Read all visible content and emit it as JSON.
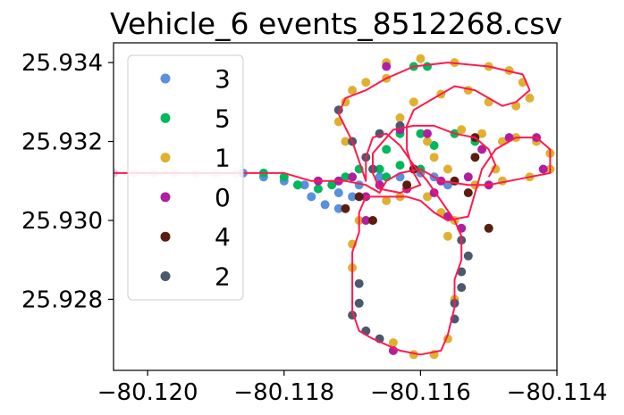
{
  "chart_data": {
    "type": "scatter",
    "title": "Vehicle_6 events_8512268.csv",
    "xlabel": "",
    "ylabel": "",
    "xlim": [
      -80.1205,
      -80.114
    ],
    "ylim": [
      25.9262,
      25.9345
    ],
    "x_ticks": [
      -80.12,
      -80.118,
      -80.116,
      -80.114
    ],
    "x_tick_labels": [
      "−80.120",
      "−80.118",
      "−80.116",
      "−80.114"
    ],
    "y_ticks": [
      25.928,
      25.93,
      25.932,
      25.934
    ],
    "y_tick_labels": [
      "25.928",
      "25.930",
      "25.932",
      "25.934"
    ],
    "grid": false,
    "legend_position": "upper-left",
    "route_line": {
      "color": "#ff1a4d",
      "points": [
        [
          -80.1205,
          25.9312
        ],
        [
          -80.119,
          25.9312
        ],
        [
          -80.118,
          25.9312
        ],
        [
          -80.1176,
          25.931
        ],
        [
          -80.1171,
          25.931
        ],
        [
          -80.1168,
          25.9309
        ],
        [
          -80.1166,
          25.9307
        ],
        [
          -80.1165,
          25.931
        ],
        [
          -80.1163,
          25.9312
        ],
        [
          -80.116,
          25.9313
        ],
        [
          -80.1157,
          25.931
        ],
        [
          -80.1153,
          25.9309
        ],
        [
          -80.115,
          25.9309
        ],
        [
          -80.1147,
          25.931
        ],
        [
          -80.1144,
          25.9311
        ],
        [
          -80.1141,
          25.9312
        ],
        [
          -80.1141,
          25.9318
        ],
        [
          -80.1143,
          25.9321
        ],
        [
          -80.1146,
          25.9321
        ],
        [
          -80.1149,
          25.9318
        ],
        [
          -80.1151,
          25.9313
        ],
        [
          -80.1153,
          25.9301
        ],
        [
          -80.1156,
          25.93
        ],
        [
          -80.1158,
          25.9302
        ],
        [
          -80.116,
          25.9305
        ],
        [
          -80.1162,
          25.9306
        ],
        [
          -80.1165,
          25.9306
        ],
        [
          -80.1168,
          25.9306
        ],
        [
          -80.1169,
          25.9302
        ],
        [
          -80.1169,
          25.9297
        ],
        [
          -80.117,
          25.9292
        ],
        [
          -80.117,
          25.9285
        ],
        [
          -80.117,
          25.9277
        ],
        [
          -80.1169,
          25.9272
        ],
        [
          -80.1167,
          25.927
        ],
        [
          -80.1163,
          25.9267
        ],
        [
          -80.116,
          25.9266
        ],
        [
          -80.1157,
          25.9267
        ],
        [
          -80.1156,
          25.9271
        ],
        [
          -80.1155,
          25.9278
        ],
        [
          -80.1155,
          25.9285
        ],
        [
          -80.1154,
          25.929
        ],
        [
          -80.1154,
          25.9296
        ],
        [
          -80.1155,
          25.93
        ],
        [
          -80.1157,
          25.9305
        ],
        [
          -80.1159,
          25.931
        ],
        [
          -80.1161,
          25.9314
        ],
        [
          -80.1163,
          25.9319
        ],
        [
          -80.1165,
          25.9322
        ],
        [
          -80.1167,
          25.9321
        ],
        [
          -80.1168,
          25.9316
        ],
        [
          -80.1168,
          25.931
        ],
        [
          -80.117,
          25.932
        ],
        [
          -80.1172,
          25.9327
        ],
        [
          -80.1171,
          25.9331
        ],
        [
          -80.1168,
          25.9333
        ],
        [
          -80.1165,
          25.9336
        ],
        [
          -80.1161,
          25.9339
        ],
        [
          -80.1156,
          25.934
        ],
        [
          -80.115,
          25.9339
        ],
        [
          -80.1145,
          25.9337
        ],
        [
          -80.1144,
          25.9333
        ],
        [
          -80.1146,
          25.933
        ],
        [
          -80.1148,
          25.9329
        ],
        [
          -80.1152,
          25.9333
        ],
        [
          -80.1155,
          25.9334
        ],
        [
          -80.1158,
          25.9331
        ],
        [
          -80.1161,
          25.9328
        ],
        [
          -80.1162,
          25.9324
        ],
        [
          -80.1162,
          25.9318
        ],
        [
          -80.1161,
          25.9312
        ],
        [
          -80.116,
          25.9309
        ],
        [
          -80.1163,
          25.9307
        ],
        [
          -80.1166,
          25.9308
        ],
        [
          -80.1167,
          25.9312
        ],
        [
          -80.1167,
          25.9317
        ],
        [
          -80.1164,
          25.9323
        ],
        [
          -80.1161,
          25.9324
        ],
        [
          -80.1158,
          25.9324
        ],
        [
          -80.1155,
          25.9322
        ],
        [
          -80.1152,
          25.9321
        ],
        [
          -80.115,
          25.9318
        ],
        [
          -80.1149,
          25.9314
        ],
        [
          -80.115,
          25.9311
        ]
      ]
    },
    "series": [
      {
        "name": "3",
        "color": "#5b8fdf",
        "points": [
          [
            -80.1186,
            25.9312
          ],
          [
            -80.1183,
            25.9311
          ],
          [
            -80.118,
            25.931
          ],
          [
            -80.1178,
            25.9309
          ],
          [
            -80.1176,
            25.9306
          ],
          [
            -80.1174,
            25.9304
          ],
          [
            -80.1172,
            25.9303
          ],
          [
            -80.117,
            25.9306
          ],
          [
            -80.1169,
            25.9309
          ],
          [
            -80.1166,
            25.9311
          ],
          [
            -80.1163,
            25.9311
          ],
          [
            -80.116,
            25.9312
          ],
          [
            -80.1158,
            25.9311
          ],
          [
            -80.1156,
            25.9309
          ],
          [
            -80.1177,
            25.9309
          ],
          [
            -80.1172,
            25.9307
          ]
        ]
      },
      {
        "name": "5",
        "color": "#00b85c",
        "points": [
          [
            -80.1183,
            25.9312
          ],
          [
            -80.118,
            25.9311
          ],
          [
            -80.1178,
            25.9309
          ],
          [
            -80.1175,
            25.9308
          ],
          [
            -80.1173,
            25.9309
          ],
          [
            -80.1171,
            25.9311
          ],
          [
            -80.1169,
            25.9313
          ],
          [
            -80.1166,
            25.9313
          ],
          [
            -80.1163,
            25.9314
          ],
          [
            -80.116,
            25.9313
          ],
          [
            -80.1158,
            25.9319
          ],
          [
            -80.116,
            25.9322
          ],
          [
            -80.1163,
            25.9322
          ],
          [
            -80.1165,
            25.9318
          ],
          [
            -80.1165,
            25.9311
          ],
          [
            -80.1159,
            25.9339
          ],
          [
            -80.1161,
            25.9339
          ],
          [
            -80.1152,
            25.932
          ],
          [
            -80.1155,
            25.9322
          ]
        ]
      },
      {
        "name": "1",
        "color": "#e0b030",
        "points": [
          [
            -80.1169,
            25.93
          ],
          [
            -80.117,
            25.9294
          ],
          [
            -80.117,
            25.9288
          ],
          [
            -80.1165,
            25.934
          ],
          [
            -80.116,
            25.9341
          ],
          [
            -80.1155,
            25.934
          ],
          [
            -80.115,
            25.9339
          ],
          [
            -80.1147,
            25.9338
          ],
          [
            -80.1145,
            25.9335
          ],
          [
            -80.1144,
            25.9331
          ],
          [
            -80.1146,
            25.9329
          ],
          [
            -80.115,
            25.933
          ],
          [
            -80.1153,
            25.9333
          ],
          [
            -80.1157,
            25.9332
          ],
          [
            -80.1161,
            25.933
          ],
          [
            -80.1163,
            25.9326
          ],
          [
            -80.1165,
            25.9336
          ],
          [
            -80.1168,
            25.9335
          ],
          [
            -80.117,
            25.9333
          ],
          [
            -80.1171,
            25.933
          ],
          [
            -80.1172,
            25.9325
          ],
          [
            -80.1171,
            25.932
          ],
          [
            -80.1148,
            25.932
          ],
          [
            -80.1146,
            25.9321
          ],
          [
            -80.1143,
            25.932
          ],
          [
            -80.1141,
            25.9317
          ],
          [
            -80.1141,
            25.9313
          ],
          [
            -80.1144,
            25.9311
          ],
          [
            -80.1148,
            25.931
          ],
          [
            -80.1152,
            25.9309
          ],
          [
            -80.1155,
            25.93
          ],
          [
            -80.1156,
            25.9296
          ],
          [
            -80.1157,
            25.9302
          ],
          [
            -80.1159,
            25.9306
          ],
          [
            -80.1163,
            25.9306
          ],
          [
            -80.1165,
            25.9305
          ],
          [
            -80.1164,
            25.9269
          ],
          [
            -80.1161,
            25.9266
          ],
          [
            -80.1158,
            25.9266
          ],
          [
            -80.1156,
            25.927
          ],
          [
            -80.1155,
            25.928
          ],
          [
            -80.1156,
            25.9313
          ],
          [
            -80.1158,
            25.9316
          ],
          [
            -80.1159,
            25.932
          ],
          [
            -80.1154,
            25.9323
          ],
          [
            -80.1151,
            25.9322
          ],
          [
            -80.1149,
            25.9313
          ]
        ]
      },
      {
        "name": "0",
        "color": "#b01fa0",
        "points": [
          [
            -80.1175,
            25.931
          ],
          [
            -80.1172,
            25.931
          ],
          [
            -80.1168,
            25.9306
          ],
          [
            -80.1166,
            25.9309
          ],
          [
            -80.1162,
            25.9308
          ],
          [
            -80.1161,
            25.9313
          ],
          [
            -80.1168,
            25.93
          ],
          [
            -80.1164,
            25.9267
          ],
          [
            -80.1165,
            25.9339
          ],
          [
            -80.1163,
            25.9323
          ],
          [
            -80.1159,
            25.9322
          ],
          [
            -80.1157,
            25.931
          ],
          [
            -80.1158,
            25.9307
          ],
          [
            -80.1151,
            25.9318
          ],
          [
            -80.115,
            25.9309
          ],
          [
            -80.1147,
            25.9321
          ],
          [
            -80.1143,
            25.9321
          ],
          [
            -80.1142,
            25.9313
          ],
          [
            -80.1154,
            25.9298
          ],
          [
            -80.1156,
            25.9301
          ],
          [
            -80.117,
            25.9311
          ],
          [
            -80.1153,
            25.9311
          ]
        ]
      },
      {
        "name": "4",
        "color": "#5a1e10",
        "points": [
          [
            -80.1171,
            25.9303
          ],
          [
            -80.1167,
            25.93
          ],
          [
            -80.1162,
            25.9309
          ],
          [
            -80.1161,
            25.9313
          ],
          [
            -80.1155,
            25.931
          ],
          [
            -80.1152,
            25.9316
          ],
          [
            -80.1152,
            25.9321
          ],
          [
            -80.115,
            25.9298
          ],
          [
            -80.1153,
            25.9307
          ],
          [
            -80.1169,
            25.9306
          ]
        ]
      },
      {
        "name": "2",
        "color": "#4a5a6e",
        "points": [
          [
            -80.1169,
            25.9284
          ],
          [
            -80.1169,
            25.9279
          ],
          [
            -80.117,
            25.9276
          ],
          [
            -80.1168,
            25.9272
          ],
          [
            -80.1166,
            25.927
          ],
          [
            -80.1155,
            25.9275
          ],
          [
            -80.1155,
            25.9279
          ],
          [
            -80.1154,
            25.9283
          ],
          [
            -80.1154,
            25.9287
          ],
          [
            -80.1153,
            25.9291
          ],
          [
            -80.1154,
            25.9295
          ],
          [
            -80.1172,
            25.9328
          ],
          [
            -80.117,
            25.932
          ],
          [
            -80.1168,
            25.9316
          ],
          [
            -80.1166,
            25.9322
          ],
          [
            -80.1163,
            25.9324
          ],
          [
            -80.1167,
            25.9313
          ]
        ]
      },
      {
        "name": "",
        "color": "#f4c6e4",
        "points": [
          [
            -80.1205,
            25.9312
          ],
          [
            -80.1202,
            25.9312
          ],
          [
            -80.1199,
            25.9312
          ],
          [
            -80.1196,
            25.9312
          ],
          [
            -80.1193,
            25.9312
          ],
          [
            -80.119,
            25.9312
          ],
          [
            -80.1187,
            25.9312
          ]
        ]
      }
    ]
  }
}
